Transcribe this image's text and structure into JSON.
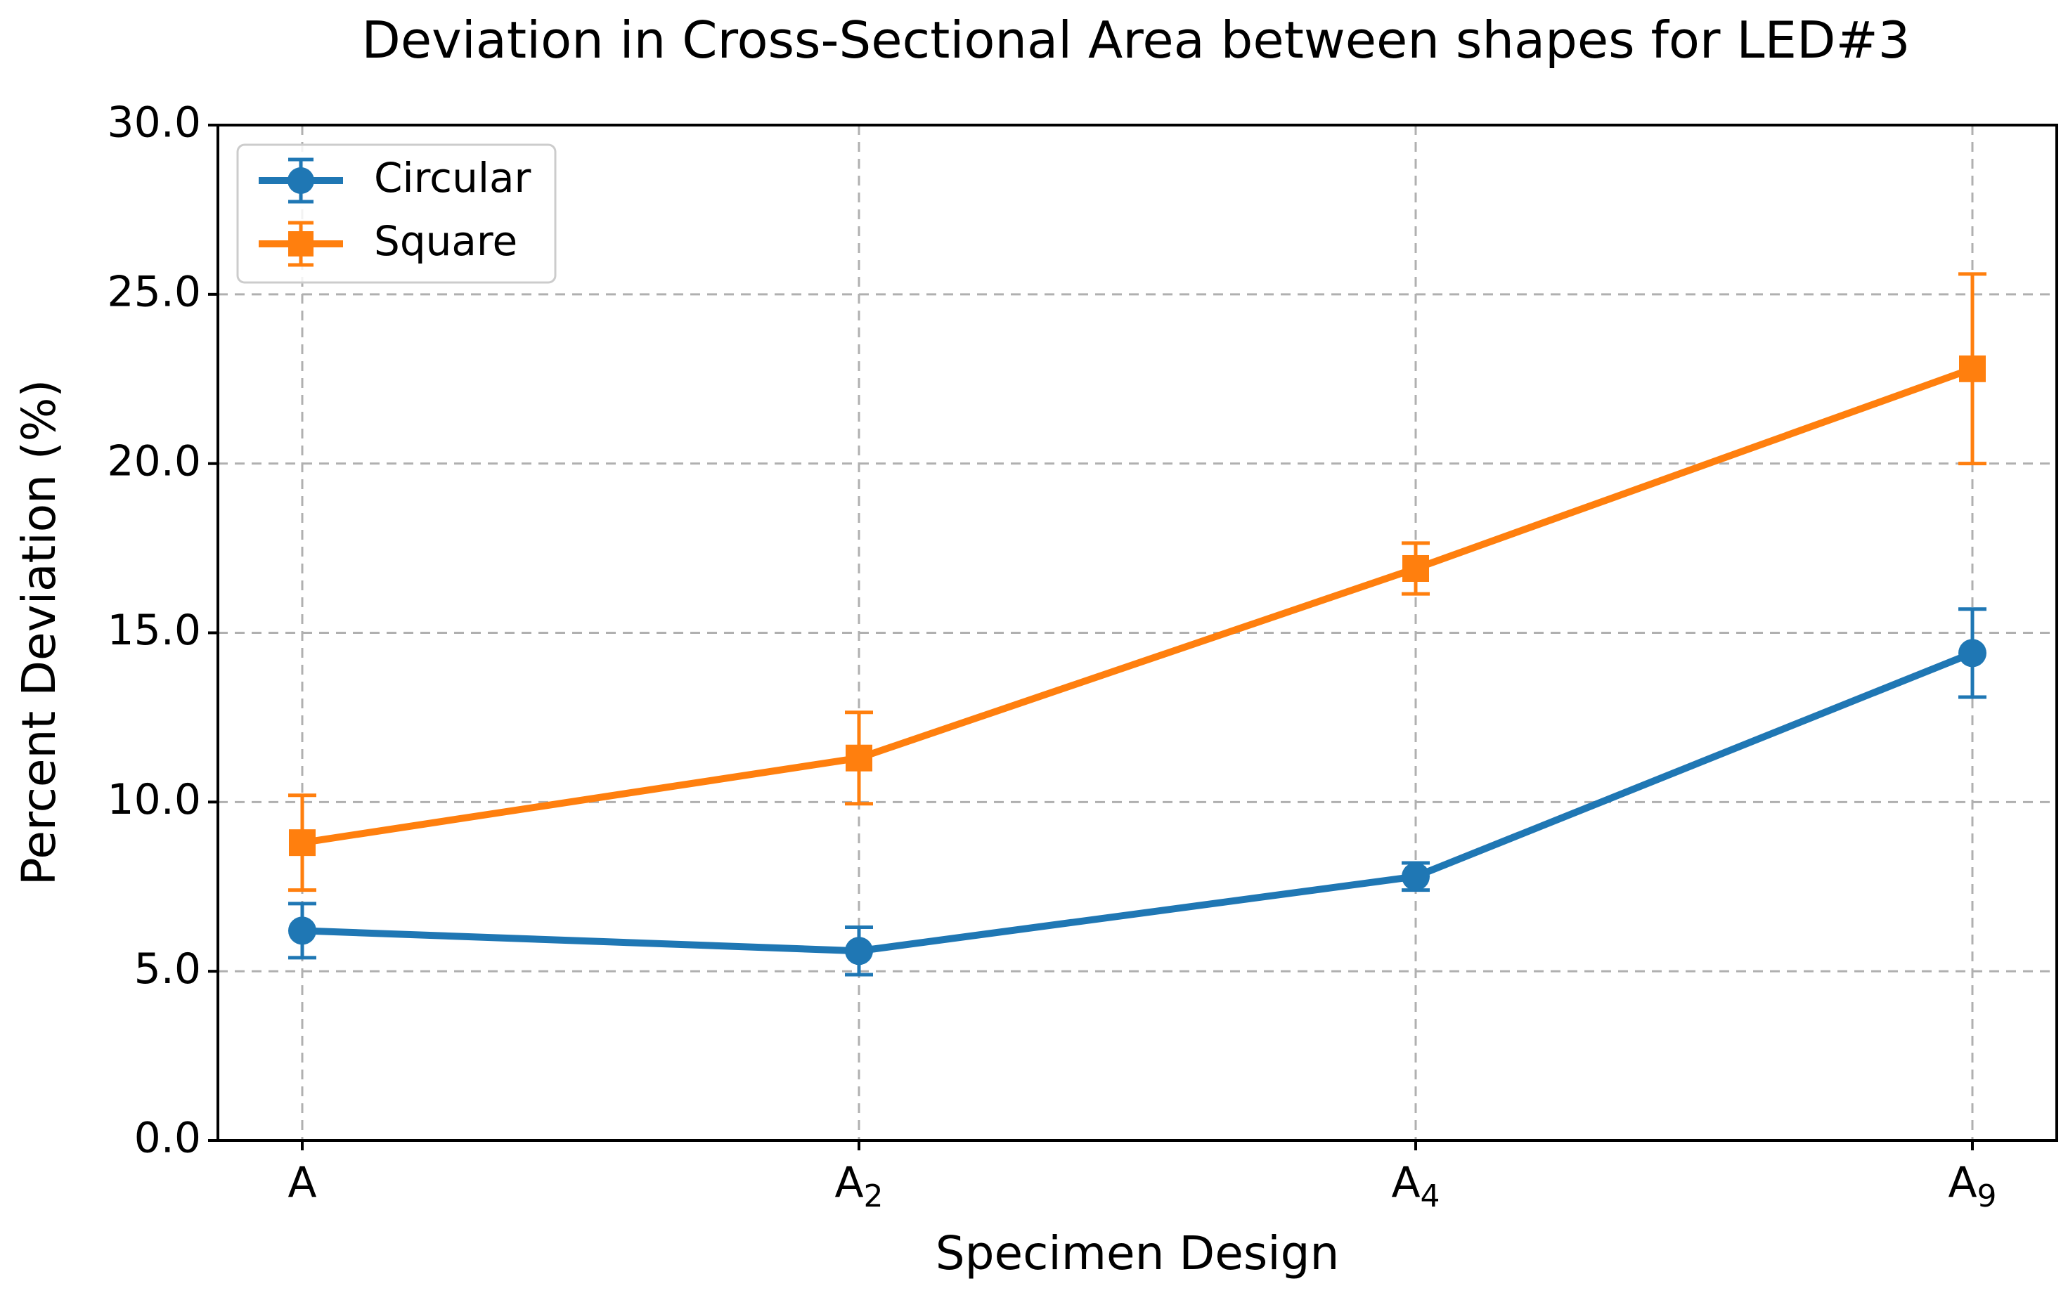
{
  "chart_data": {
    "type": "line",
    "title": "Deviation in Cross-Sectional Area between shapes for LED#3",
    "xlabel": "Specimen Design",
    "ylabel": "Percent Deviation (%)",
    "categories": [
      {
        "base": "A",
        "sub": ""
      },
      {
        "base": "A",
        "sub": "2"
      },
      {
        "base": "A",
        "sub": "4"
      },
      {
        "base": "A",
        "sub": "9"
      }
    ],
    "ylim": [
      0,
      30
    ],
    "yticks": [
      "0.0",
      "5.0",
      "10.0",
      "15.0",
      "20.0",
      "25.0",
      "30.0"
    ],
    "grid": true,
    "legend_position": "top-left",
    "series": [
      {
        "name": "Circular",
        "color": "#1f77b4",
        "marker": "circle",
        "values": [
          6.2,
          5.6,
          7.8,
          14.4
        ],
        "errors": [
          0.8,
          0.7,
          0.4,
          1.3
        ]
      },
      {
        "name": "Square",
        "color": "#ff7f0e",
        "marker": "square",
        "values": [
          8.8,
          11.3,
          16.9,
          22.8
        ],
        "errors": [
          1.4,
          1.35,
          0.75,
          2.8
        ]
      }
    ]
  }
}
